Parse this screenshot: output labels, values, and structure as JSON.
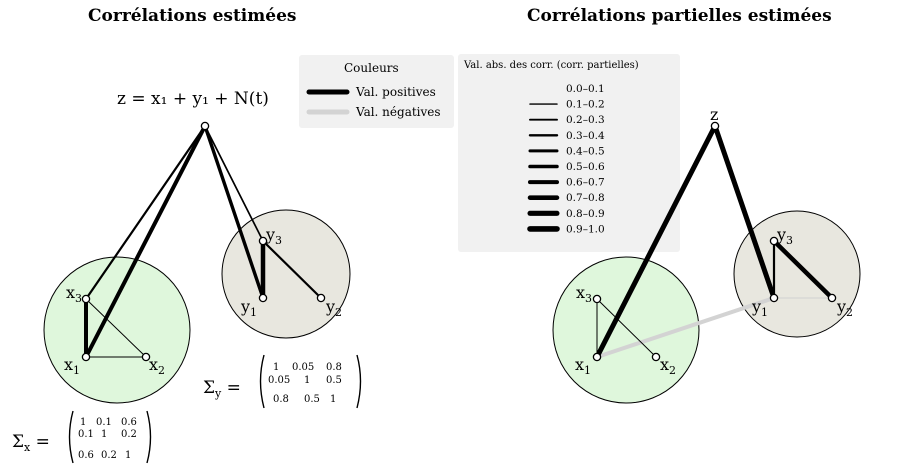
{
  "titles": {
    "left": "Corrélations estimées",
    "right": "Corrélations partielles estimées"
  },
  "equation": "z = x₁ + y₁ + N(t)",
  "legend_colors": {
    "title": "Couleurs",
    "positive": "Val. positives",
    "negative": "Val. négatives",
    "positive_color": "#000000",
    "negative_color": "#d3d3d3"
  },
  "legend_widths": {
    "title": "Val. abs. des corr. (corr. partielles)",
    "ranges": [
      "0.0–0.1",
      "0.1–0.2",
      "0.2–0.3",
      "0.3–0.4",
      "0.4–0.5",
      "0.5–0.6",
      "0.6–0.7",
      "0.7–0.8",
      "0.8–0.9",
      "0.9–1.0"
    ]
  },
  "nodes": {
    "x1": {
      "base": "x",
      "sub": "1"
    },
    "x2": {
      "base": "x",
      "sub": "2"
    },
    "x3": {
      "base": "x",
      "sub": "3"
    },
    "y1": {
      "base": "y",
      "sub": "1"
    },
    "y2": {
      "base": "y",
      "sub": "2"
    },
    "y3": {
      "base": "y",
      "sub": "3"
    },
    "z": "z"
  },
  "group_colors": {
    "x_group": "#dff7dc",
    "y_group": "#e8e7df"
  },
  "sigma_x": {
    "label": "Σ",
    "sub": "x",
    "rows": [
      [
        "1",
        "0.1",
        "0.6"
      ],
      [
        "0.1",
        "1",
        "0.2"
      ],
      [
        "0.6",
        "0.2",
        "1"
      ]
    ]
  },
  "sigma_y": {
    "label": "Σ",
    "sub": "y",
    "rows": [
      [
        "1",
        "0.05",
        "0.8"
      ],
      [
        "0.05",
        "1",
        "0.5"
      ],
      [
        "0.8",
        "0.5",
        "1"
      ]
    ]
  }
}
